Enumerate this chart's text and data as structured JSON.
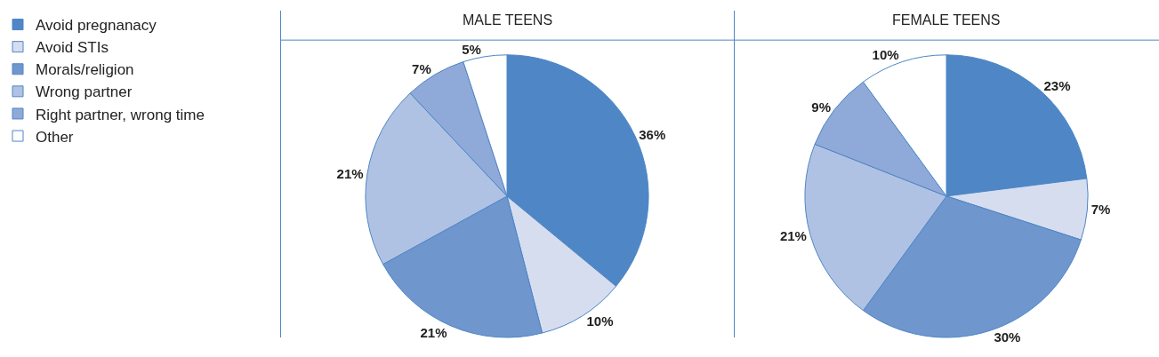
{
  "chart_data": [
    {
      "type": "pie",
      "title": "MALE TEENS",
      "categories": [
        "Avoid pregnanacy",
        "Avoid STIs",
        "Morals/religion",
        "Wrong partner",
        "Right partner, wrong time",
        "Other"
      ],
      "values": [
        36,
        10,
        21,
        21,
        7,
        5
      ],
      "value_labels": [
        "36%",
        "10%",
        "21%",
        "21%",
        "7%",
        "5%"
      ],
      "colors": [
        "#4e86c6",
        "#d6ddef",
        "#6f96cd",
        "#b0c2e3",
        "#8faad8",
        "#ffffff"
      ],
      "legend": "left"
    },
    {
      "type": "pie",
      "title": "FEMALE TEENS",
      "categories": [
        null,
        null,
        null,
        null,
        null,
        null
      ],
      "values": [
        23,
        7,
        30,
        21,
        9,
        10
      ],
      "value_labels": [
        "23%",
        "7%",
        "30%",
        "21%",
        "9%",
        "10%"
      ],
      "colors": [
        "#4e86c6",
        "#d6ddef",
        "#6f96cd",
        "#b0c2e3",
        "#8faad8",
        "#ffffff"
      ]
    }
  ]
}
